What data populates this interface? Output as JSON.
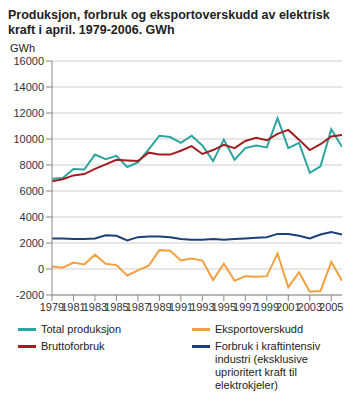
{
  "chart_data": {
    "type": "line",
    "title": "Produksjon, forbruk og eksportoverskudd av elektrisk kraft i april. 1979-2006. GWh",
    "y_label": "GWh",
    "x": [
      1979,
      1980,
      1981,
      1982,
      1983,
      1984,
      1985,
      1986,
      1987,
      1988,
      1989,
      1990,
      1991,
      1992,
      1993,
      1994,
      1995,
      1996,
      1997,
      1998,
      1999,
      2000,
      2001,
      2002,
      2003,
      2004,
      2005,
      2006
    ],
    "series": [
      {
        "name": "Total produksjon",
        "color": "#2ba5a0",
        "values": [
          6950,
          7000,
          7700,
          7650,
          8800,
          8450,
          8700,
          7850,
          8200,
          9200,
          10250,
          10150,
          9700,
          10250,
          9500,
          8300,
          9950,
          8400,
          9300,
          9500,
          9350,
          11600,
          9300,
          9700,
          7400,
          7900,
          10750,
          9400
        ]
      },
      {
        "name": "Eksportoverskudd",
        "color": "#f2a03d",
        "values": [
          200,
          100,
          500,
          350,
          1100,
          400,
          300,
          -500,
          -100,
          250,
          1450,
          1400,
          650,
          800,
          650,
          -850,
          400,
          -900,
          -550,
          -600,
          -550,
          1200,
          -1400,
          -250,
          -1750,
          -1700,
          550,
          -900
        ]
      },
      {
        "name": "Bruttoforbruk",
        "color": "#a11d21",
        "values": [
          6750,
          6900,
          7200,
          7300,
          7700,
          8050,
          8400,
          8350,
          8300,
          8950,
          8800,
          8800,
          9100,
          9450,
          8850,
          9150,
          9550,
          9300,
          9850,
          10100,
          9900,
          10400,
          10700,
          9950,
          9150,
          9600,
          10200,
          10300
        ]
      },
      {
        "name": "Forbruk i kraftintensiv industri (eksklusive uprioritert kraft til elektrokjeler)",
        "color": "#1c3f7a",
        "values": [
          2350,
          2350,
          2300,
          2300,
          2350,
          2600,
          2550,
          2200,
          2450,
          2500,
          2500,
          2450,
          2300,
          2250,
          2250,
          2300,
          2250,
          2300,
          2350,
          2400,
          2450,
          2700,
          2700,
          2550,
          2350,
          2650,
          2850,
          2650
        ]
      }
    ],
    "xlim": [
      1979,
      2006
    ],
    "xticks": [
      1979,
      1981,
      1983,
      1985,
      1987,
      1989,
      1991,
      1993,
      1995,
      1997,
      1999,
      2001,
      2003,
      2005
    ],
    "ylim": [
      -2000,
      16000
    ],
    "yticks": [
      -2000,
      0,
      2000,
      4000,
      6000,
      8000,
      10000,
      12000,
      14000,
      16000
    ],
    "grid": true
  }
}
